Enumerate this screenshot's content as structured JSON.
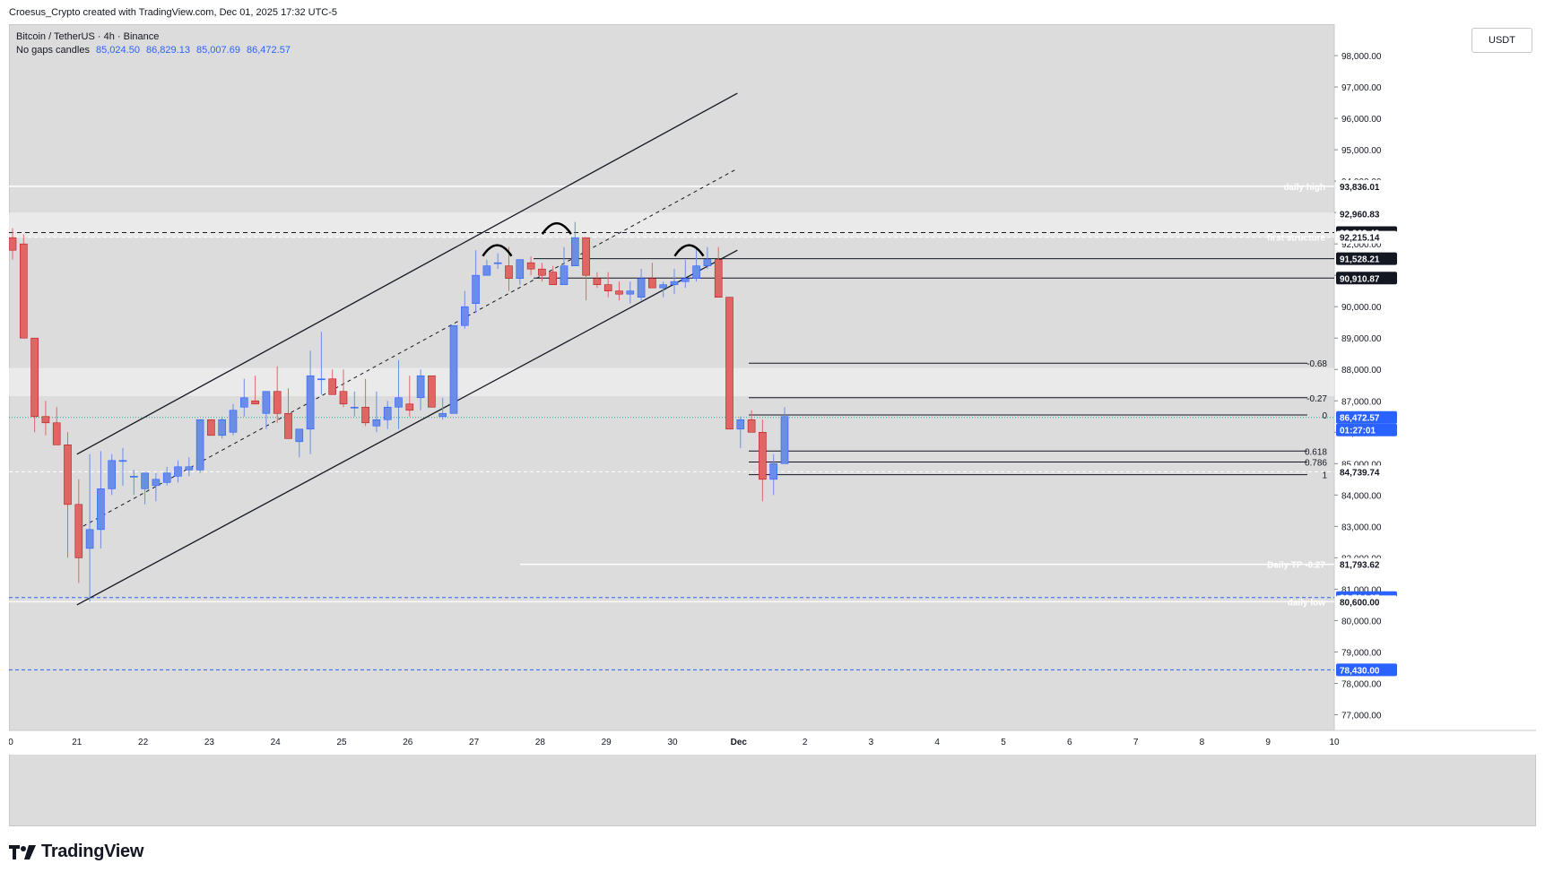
{
  "header": {
    "credit": "Croesus_Crypto created with TradingView.com, Dec 01, 2025 17:32 UTC-5"
  },
  "legend": {
    "symbol": "Bitcoin / TetherUS · 4h · Binance",
    "mode": "No gaps candles",
    "ohlc": [
      "85,024.50",
      "86,829.13",
      "85,007.69",
      "86,472.57"
    ]
  },
  "toolbar": {
    "currency": "USDT"
  },
  "footer": {
    "brand": "TradingView"
  },
  "colors": {
    "up": "#6b8de6",
    "down": "#e06666",
    "background": "#dcdcdc",
    "accent": "#2962ff"
  },
  "chart_data": {
    "type": "candlestick",
    "timeframe": "4h",
    "ylim": [
      76500,
      99000
    ],
    "price_ticks": [
      "77,000.00",
      "78,000.00",
      "79,000.00",
      "80,000.00",
      "81,000.00",
      "82,000.00",
      "83,000.00",
      "84,000.00",
      "85,000.00",
      "86,000.00",
      "87,000.00",
      "88,000.00",
      "89,000.00",
      "90,000.00",
      "91,000.00",
      "92,000.00",
      "93,000.00",
      "94,000.00",
      "95,000.00",
      "96,000.00",
      "97,000.00",
      "98,000.00"
    ],
    "time_labels": [
      {
        "label": "0",
        "t": 0
      },
      {
        "label": "21",
        "t": 1
      },
      {
        "label": "22",
        "t": 2
      },
      {
        "label": "23",
        "t": 3
      },
      {
        "label": "24",
        "t": 4
      },
      {
        "label": "25",
        "t": 5
      },
      {
        "label": "26",
        "t": 6
      },
      {
        "label": "27",
        "t": 7
      },
      {
        "label": "28",
        "t": 8
      },
      {
        "label": "29",
        "t": 9
      },
      {
        "label": "30",
        "t": 10
      },
      {
        "label": "Dec",
        "t": 11
      },
      {
        "label": "2",
        "t": 12
      },
      {
        "label": "3",
        "t": 13
      },
      {
        "label": "4",
        "t": 14
      },
      {
        "label": "5",
        "t": 15
      },
      {
        "label": "6",
        "t": 16
      },
      {
        "label": "7",
        "t": 17
      },
      {
        "label": "8",
        "t": 18
      },
      {
        "label": "9",
        "t": 19
      },
      {
        "label": "10",
        "t": 20
      }
    ],
    "candles_start_t": 0,
    "candles": [
      [
        92200,
        92500,
        91500,
        91800
      ],
      [
        92000,
        92300,
        89000,
        89000
      ],
      [
        89000,
        89000,
        86000,
        86500
      ],
      [
        86500,
        87000,
        85900,
        86300
      ],
      [
        86300,
        86800,
        85600,
        85600
      ],
      [
        85600,
        86000,
        82000,
        83700
      ],
      [
        83700,
        84500,
        81200,
        82000
      ],
      [
        82300,
        85300,
        80600,
        82900
      ],
      [
        82900,
        85400,
        82300,
        84200
      ],
      [
        84200,
        85300,
        84000,
        85100
      ],
      [
        85100,
        85500,
        84300,
        85100
      ],
      [
        84600,
        84800,
        84000,
        84600
      ],
      [
        84200,
        84700,
        83700,
        84700
      ],
      [
        84300,
        84700,
        83800,
        84500
      ],
      [
        84400,
        84900,
        84300,
        84700
      ],
      [
        84600,
        85100,
        84400,
        84900
      ],
      [
        84800,
        85200,
        84600,
        84900
      ],
      [
        84800,
        86400,
        84700,
        86400
      ],
      [
        86400,
        86400,
        85900,
        85900
      ],
      [
        85900,
        86500,
        85800,
        86400
      ],
      [
        86000,
        86900,
        85900,
        86700
      ],
      [
        86800,
        87700,
        86500,
        87100
      ],
      [
        87000,
        87800,
        86900,
        86900
      ],
      [
        86600,
        87300,
        86100,
        87300
      ],
      [
        87300,
        88100,
        86300,
        86600
      ],
      [
        86600,
        87400,
        85900,
        85800
      ],
      [
        85700,
        86000,
        85200,
        86100
      ],
      [
        86100,
        88600,
        85300,
        87800
      ],
      [
        87700,
        89200,
        87200,
        87700
      ],
      [
        87700,
        88000,
        87200,
        87200
      ],
      [
        87300,
        88000,
        86800,
        86900
      ],
      [
        86800,
        87300,
        86500,
        86800
      ],
      [
        86800,
        87700,
        86200,
        86300
      ],
      [
        86200,
        87300,
        86000,
        86400
      ],
      [
        86400,
        87000,
        86100,
        86800
      ],
      [
        86800,
        88300,
        86100,
        87100
      ],
      [
        86900,
        87800,
        86500,
        86700
      ],
      [
        87100,
        88000,
        86700,
        87800
      ],
      [
        87800,
        87800,
        86800,
        86800
      ],
      [
        86500,
        87100,
        86400,
        86600
      ],
      [
        86600,
        89400,
        86600,
        89400
      ],
      [
        89400,
        90500,
        89300,
        90000
      ],
      [
        90100,
        91800,
        89800,
        91000
      ],
      [
        91000,
        91500,
        91000,
        91300
      ],
      [
        91400,
        91700,
        91200,
        91400
      ],
      [
        91300,
        91900,
        90500,
        90900
      ],
      [
        90900,
        91500,
        90700,
        91500
      ],
      [
        91400,
        91600,
        91000,
        91200
      ],
      [
        91200,
        91400,
        90800,
        91000
      ],
      [
        91100,
        91300,
        90800,
        90700
      ],
      [
        90700,
        91900,
        90700,
        91300
      ],
      [
        91300,
        92700,
        91300,
        92200
      ],
      [
        92200,
        92200,
        90200,
        91000
      ],
      [
        90900,
        91100,
        90600,
        90700
      ],
      [
        90700,
        91100,
        90300,
        90500
      ],
      [
        90500,
        90800,
        90200,
        90400
      ],
      [
        90400,
        90800,
        90100,
        90500
      ],
      [
        90300,
        91200,
        90200,
        90900
      ],
      [
        90900,
        91400,
        90700,
        90600
      ],
      [
        90600,
        90800,
        90300,
        90700
      ],
      [
        90700,
        91200,
        90400,
        90800
      ],
      [
        90800,
        91500,
        90600,
        90900
      ],
      [
        90900,
        91900,
        90800,
        91300
      ],
      [
        91300,
        91900,
        91200,
        91500
      ],
      [
        91500,
        91900,
        90300,
        90300
      ],
      [
        90300,
        90300,
        86100,
        86100
      ],
      [
        86100,
        86500,
        85500,
        86400
      ],
      [
        86400,
        86700,
        86000,
        86000
      ],
      [
        86000,
        86400,
        83800,
        84500
      ],
      [
        84500,
        85300,
        84000,
        85000
      ],
      [
        85000,
        86800,
        85000,
        86500
      ]
    ],
    "levels": [
      {
        "price": 93836.01,
        "label": "daily high",
        "tag": "93,836.01",
        "style": "white-solid"
      },
      {
        "price": 92960.83,
        "tag": "92,960.83",
        "style": "none"
      },
      {
        "price": 92362.49,
        "tag": "92,362.49",
        "style": "black-dashed"
      },
      {
        "price": 92215.14,
        "label": "first structure",
        "tag": "92,215.14",
        "style": "white-dashed"
      },
      {
        "price": 91528.21,
        "tag": "91,528.21",
        "style": "black-solid"
      },
      {
        "price": 90910.87,
        "tag": "90,910.87",
        "style": "black-solid"
      },
      {
        "price": 86472.57,
        "tag": "86,472.57",
        "extra": "01:27:01",
        "style": "current"
      },
      {
        "price": 84739.74,
        "tag": "84,739.74",
        "style": "white-dashed"
      },
      {
        "price": 81793.62,
        "label": "Daily TP -0.27",
        "tag": "81,793.62",
        "style": "white-solid"
      },
      {
        "price": 80734.37,
        "tag": "80,734.37",
        "style": "blue-dashed"
      },
      {
        "price": 80600.0,
        "label": "daily low",
        "tag": "80,600.00",
        "style": "white-solid"
      },
      {
        "price": 78430.0,
        "tag": "78,430.00",
        "style": "blue-dashed"
      }
    ],
    "fib": [
      {
        "label": "-0.68",
        "price": 88200
      },
      {
        "label": "-0.27",
        "price": 87100
      },
      {
        "label": "0",
        "price": 86550
      },
      {
        "label": "0.618",
        "price": 85400
      },
      {
        "label": "0.786",
        "price": 85050
      },
      {
        "label": "1",
        "price": 84650
      }
    ],
    "zones": [
      {
        "from": 92200,
        "to": 93000
      },
      {
        "from": 87150,
        "to": 88050
      }
    ],
    "channel": {
      "upper": [
        [
          1.0,
          85300
        ],
        [
          10.98,
          96800
        ]
      ],
      "lower": [
        [
          1.0,
          80500
        ],
        [
          10.98,
          91800
        ]
      ],
      "mid": [
        [
          1.0,
          82900
        ],
        [
          10.98,
          94400
        ]
      ]
    },
    "annotations": [
      "head-and-shoulders arcs over 27, 28 and 30"
    ]
  }
}
